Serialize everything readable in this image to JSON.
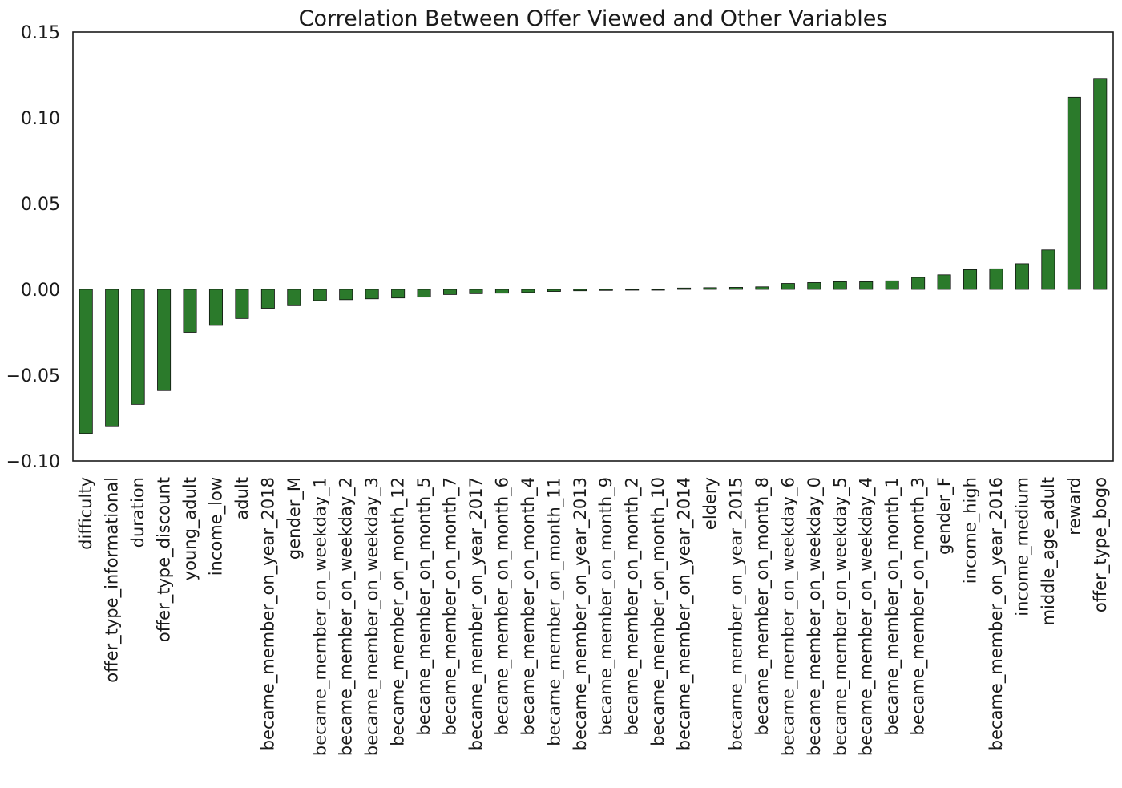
{
  "chart_data": {
    "type": "bar",
    "title": "Correlation Between Offer Viewed and Other Variables",
    "xlabel": "",
    "ylabel": "",
    "ylim": [
      -0.1,
      0.15
    ],
    "yticks": [
      -0.1,
      -0.05,
      0.0,
      0.05,
      0.1,
      0.15
    ],
    "ytick_labels": [
      "−0.10",
      "−0.05",
      "0.00",
      "0.05",
      "0.10",
      "0.15"
    ],
    "grid": false,
    "bar_color": "#2b7a2b",
    "categories": [
      "difficulty",
      "offer_type_informational",
      "duration",
      "offer_type_discount",
      "young_adult",
      "income_low",
      "adult",
      "became_member_on_year_2018",
      "gender_M",
      "became_member_on_weekday_1",
      "became_member_on_weekday_2",
      "became_member_on_weekday_3",
      "became_member_on_month_12",
      "became_member_on_month_5",
      "became_member_on_month_7",
      "became_member_on_year_2017",
      "became_member_on_month_6",
      "became_member_on_month_4",
      "became_member_on_month_11",
      "became_member_on_year_2013",
      "became_member_on_month_9",
      "became_member_on_month_2",
      "became_member_on_month_10",
      "became_member_on_year_2014",
      "eldery",
      "became_member_on_year_2015",
      "became_member_on_month_8",
      "became_member_on_weekday_6",
      "became_member_on_weekday_0",
      "became_member_on_weekday_5",
      "became_member_on_weekday_4",
      "became_member_on_month_1",
      "became_member_on_month_3",
      "gender_F",
      "income_high",
      "became_member_on_year_2016",
      "income_medium",
      "middle_age_adult",
      "reward",
      "offer_type_bogo"
    ],
    "values": [
      -0.084,
      -0.08,
      -0.067,
      -0.059,
      -0.025,
      -0.021,
      -0.017,
      -0.011,
      -0.0095,
      -0.0065,
      -0.006,
      -0.0055,
      -0.005,
      -0.0045,
      -0.003,
      -0.0025,
      -0.0022,
      -0.0018,
      -0.0012,
      -0.0008,
      -0.0006,
      -0.0004,
      -0.0003,
      0.0008,
      0.001,
      0.0012,
      0.0015,
      0.0035,
      0.004,
      0.0045,
      0.0045,
      0.005,
      0.007,
      0.0085,
      0.0115,
      0.012,
      0.015,
      0.023,
      0.112,
      0.123
    ]
  }
}
